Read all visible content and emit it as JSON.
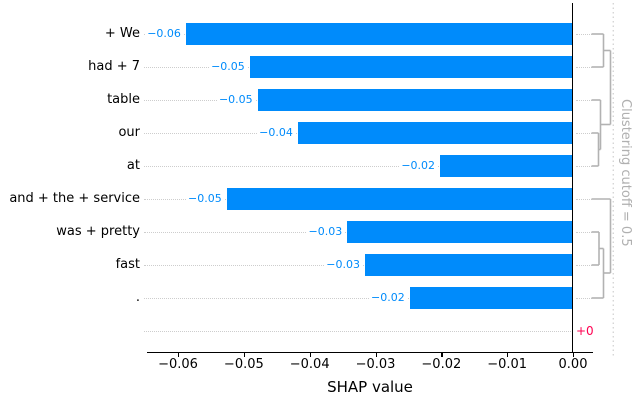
{
  "chart_data": {
    "type": "bar",
    "orientation": "horizontal",
    "title": "",
    "xlabel": "SHAP value",
    "xlim": [
      -0.0647,
      0.003
    ],
    "grid": "dotted row leader lines",
    "categories": [
      "+ We",
      "had + 7",
      "table",
      "our",
      "at",
      "and + the + service",
      "was + pretty",
      "fast",
      ".",
      ""
    ],
    "values": [
      -0.0588,
      -0.0491,
      -0.0479,
      -0.0418,
      -0.0202,
      -0.0526,
      -0.0343,
      -0.0316,
      -0.0248,
      0
    ],
    "value_labels": [
      "−0.06",
      "−0.05",
      "−0.05",
      "−0.04",
      "−0.02",
      "−0.05",
      "−0.03",
      "−0.03",
      "−0.02",
      "+0"
    ],
    "x_ticks": [
      {
        "label": "−0.06",
        "value": -0.06
      },
      {
        "label": "−0.05",
        "value": -0.05
      },
      {
        "label": "−0.04",
        "value": -0.04
      },
      {
        "label": "−0.03",
        "value": -0.03
      },
      {
        "label": "−0.02",
        "value": -0.02
      },
      {
        "label": "−0.01",
        "value": -0.01
      },
      {
        "label": "0.00",
        "value": 0.0
      }
    ]
  },
  "dendrogram": {
    "cutoff_label": "Clustering cutoff = 0.5",
    "leaf_rows": [
      0,
      1,
      2,
      3,
      4,
      5,
      6,
      7,
      8
    ],
    "segments": [
      [
        591.5,
        34,
        603.5,
        34
      ],
      [
        591.5,
        67,
        603.5,
        67
      ],
      [
        603.5,
        34,
        603.5,
        67
      ],
      [
        603.5,
        50.5,
        610.5,
        50.5
      ],
      [
        591.5,
        133,
        598.5,
        133
      ],
      [
        591.5,
        166,
        598.5,
        166
      ],
      [
        598.5,
        133,
        598.5,
        166
      ],
      [
        598.5,
        149.5,
        600.5,
        149.5
      ],
      [
        591.5,
        100,
        600.5,
        100
      ],
      [
        600.5,
        100,
        600.5,
        149.5
      ],
      [
        600.5,
        124.5,
        610.5,
        124.5
      ],
      [
        610.5,
        50.5,
        610.5,
        124.5
      ],
      [
        591.5,
        232,
        599,
        232
      ],
      [
        591.5,
        265,
        599,
        265
      ],
      [
        599,
        232,
        599,
        265
      ],
      [
        599,
        248.5,
        603.5,
        248.5
      ],
      [
        591.5,
        298,
        603.5,
        298
      ],
      [
        603.5,
        248.5,
        603.5,
        298
      ],
      [
        603.5,
        273,
        610.5,
        273
      ],
      [
        591.5,
        199,
        610.5,
        199
      ],
      [
        610.5,
        199,
        610.5,
        273
      ]
    ],
    "cutoff_line_x": 613.3
  },
  "colors": {
    "bar_negative": "#008bfb",
    "value_negative": "#008bfb",
    "value_positive": "#ff0051",
    "dendrogram": "#b2b2b2",
    "cutoff_line": "#d6d6d6",
    "leader_dots": "#cdcdcd",
    "axis": "#000000"
  }
}
